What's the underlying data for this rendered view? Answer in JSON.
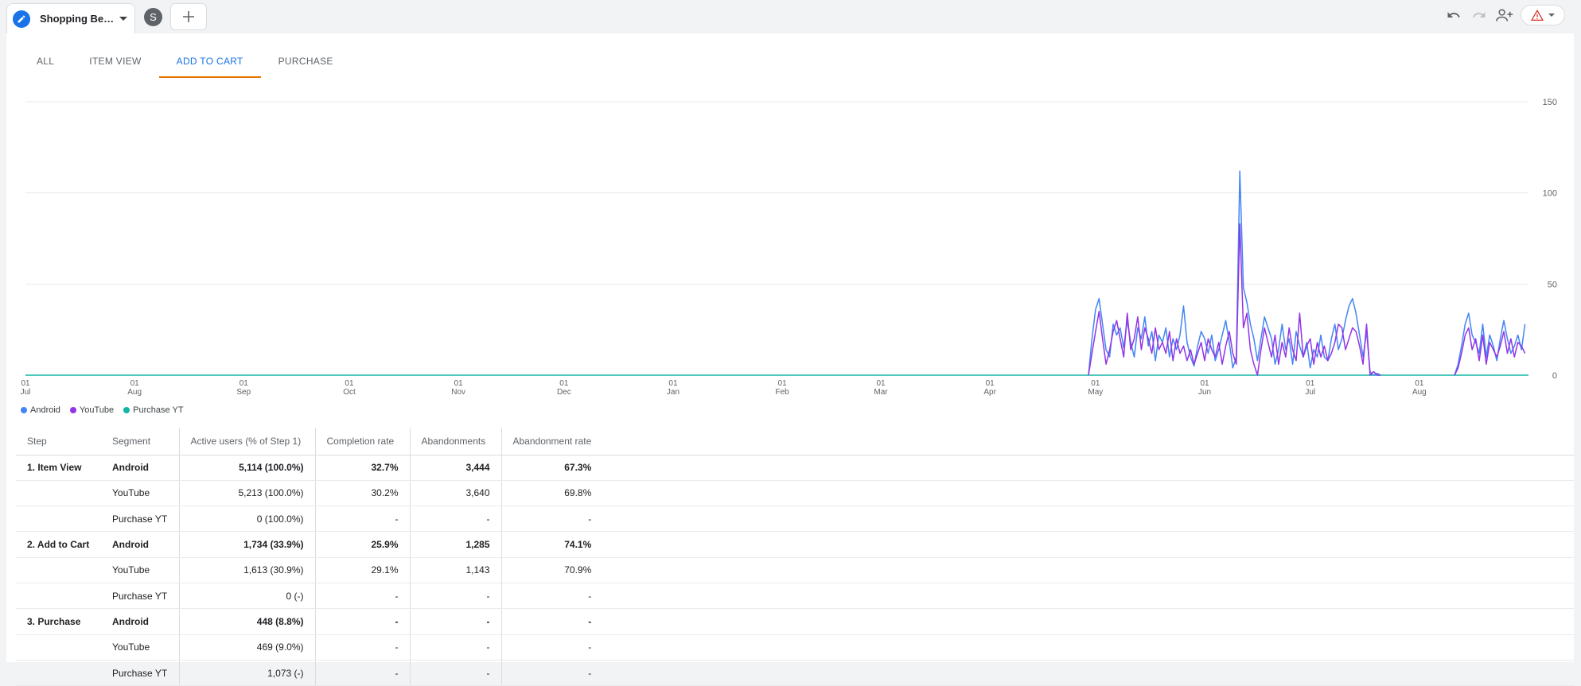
{
  "topbar": {
    "exploration_title": "Shopping Beh...",
    "segment_initial": "S",
    "icons": [
      "undo-icon",
      "redo-icon",
      "share-icon",
      "warning-icon"
    ]
  },
  "tabs": [
    {
      "label": "ALL",
      "active": false
    },
    {
      "label": "ITEM VIEW",
      "active": false
    },
    {
      "label": "ADD TO CART",
      "active": true
    },
    {
      "label": "PURCHASE",
      "active": false
    }
  ],
  "colors": {
    "android": "#4285f4",
    "youtube": "#9334e6",
    "purchase_yt": "#12b5a6",
    "accent": "#1a73e8",
    "tab_underline": "#e37400"
  },
  "chart_data": {
    "type": "line",
    "y_ticks": [
      0,
      50,
      100,
      150
    ],
    "ylim": [
      0,
      150
    ],
    "y_axis_side": "right",
    "x_ticks": [
      {
        "day": "01",
        "month": "Jul"
      },
      {
        "day": "01",
        "month": "Aug"
      },
      {
        "day": "01",
        "month": "Sep"
      },
      {
        "day": "01",
        "month": "Oct"
      },
      {
        "day": "01",
        "month": "Nov"
      },
      {
        "day": "01",
        "month": "Dec"
      },
      {
        "day": "01",
        "month": "Jan"
      },
      {
        "day": "01",
        "month": "Feb"
      },
      {
        "day": "01",
        "month": "Mar"
      },
      {
        "day": "01",
        "month": "Apr"
      },
      {
        "day": "01",
        "month": "May"
      },
      {
        "day": "01",
        "month": "Jun"
      },
      {
        "day": "01",
        "month": "Jul"
      },
      {
        "day": "01",
        "month": "Aug"
      }
    ],
    "x_range": [
      "Jul 01",
      "Sep 01 (following year)"
    ],
    "grid": true,
    "legend_position": "bottom-left",
    "series": [
      {
        "name": "Android",
        "color": "#4285f4",
        "points": [
          [
            "Apr 29",
            0
          ],
          [
            "Apr 30",
            20
          ],
          [
            "May 01",
            36
          ],
          [
            "May 02",
            42
          ],
          [
            "May 03",
            28
          ],
          [
            "May 04",
            14
          ],
          [
            "May 05",
            10
          ],
          [
            "May 06",
            28
          ],
          [
            "May 07",
            22
          ],
          [
            "May 08",
            26
          ],
          [
            "May 09",
            15
          ],
          [
            "May 10",
            30
          ],
          [
            "May 11",
            18
          ],
          [
            "May 12",
            10
          ],
          [
            "May 13",
            26
          ],
          [
            "May 14",
            20
          ],
          [
            "May 15",
            32
          ],
          [
            "May 16",
            16
          ],
          [
            "May 17",
            24
          ],
          [
            "May 18",
            8
          ],
          [
            "May 19",
            22
          ],
          [
            "May 20",
            18
          ],
          [
            "May 21",
            26
          ],
          [
            "May 22",
            10
          ],
          [
            "May 23",
            20
          ],
          [
            "May 24",
            14
          ],
          [
            "May 25",
            22
          ],
          [
            "May 26",
            38
          ],
          [
            "May 27",
            18
          ],
          [
            "May 28",
            10
          ],
          [
            "May 29",
            5
          ],
          [
            "May 30",
            16
          ],
          [
            "May 31",
            24
          ],
          [
            "Jun 01",
            20
          ],
          [
            "Jun 02",
            12
          ],
          [
            "Jun 03",
            22
          ],
          [
            "Jun 04",
            8
          ],
          [
            "Jun 05",
            14
          ],
          [
            "Jun 06",
            22
          ],
          [
            "Jun 07",
            30
          ],
          [
            "Jun 08",
            18
          ],
          [
            "Jun 09",
            4
          ],
          [
            "Jun 10",
            10
          ],
          [
            "Jun 11",
            112
          ],
          [
            "Jun 12",
            48
          ],
          [
            "Jun 13",
            40
          ],
          [
            "Jun 14",
            28
          ],
          [
            "Jun 15",
            20
          ],
          [
            "Jun 16",
            8
          ],
          [
            "Jun 17",
            20
          ],
          [
            "Jun 18",
            32
          ],
          [
            "Jun 19",
            26
          ],
          [
            "Jun 20",
            20
          ],
          [
            "Jun 21",
            6
          ],
          [
            "Jun 22",
            14
          ],
          [
            "Jun 23",
            28
          ],
          [
            "Jun 24",
            14
          ],
          [
            "Jun 25",
            20
          ],
          [
            "Jun 26",
            6
          ],
          [
            "Jun 27",
            24
          ],
          [
            "Jun 28",
            16
          ],
          [
            "Jun 29",
            10
          ],
          [
            "Jun 30",
            18
          ],
          [
            "Jul 01",
            4
          ],
          [
            "Jul 02",
            14
          ],
          [
            "Jul 03",
            10
          ],
          [
            "Jul 04",
            22
          ],
          [
            "Jul 05",
            10
          ],
          [
            "Jul 06",
            8
          ],
          [
            "Jul 07",
            20
          ],
          [
            "Jul 08",
            28
          ],
          [
            "Jul 09",
            14
          ],
          [
            "Jul 10",
            20
          ],
          [
            "Jul 11",
            30
          ],
          [
            "Jul 12",
            38
          ],
          [
            "Jul 13",
            42
          ],
          [
            "Jul 14",
            34
          ],
          [
            "Jul 15",
            22
          ],
          [
            "Jul 16",
            10
          ],
          [
            "Jul 17",
            24
          ],
          [
            "Jul 18",
            2
          ],
          [
            "Jul 19",
            0
          ],
          [
            "Jul 20",
            1
          ],
          [
            "Jul 21",
            0
          ],
          [
            "Aug 11",
            0
          ],
          [
            "Aug 12",
            6
          ],
          [
            "Aug 13",
            16
          ],
          [
            "Aug 14",
            28
          ],
          [
            "Aug 15",
            34
          ],
          [
            "Aug 16",
            22
          ],
          [
            "Aug 17",
            18
          ],
          [
            "Aug 18",
            12
          ],
          [
            "Aug 19",
            28
          ],
          [
            "Aug 20",
            10
          ],
          [
            "Aug 21",
            22
          ],
          [
            "Aug 22",
            16
          ],
          [
            "Aug 23",
            8
          ],
          [
            "Aug 24",
            20
          ],
          [
            "Aug 25",
            30
          ],
          [
            "Aug 26",
            20
          ],
          [
            "Aug 27",
            12
          ],
          [
            "Aug 28",
            16
          ],
          [
            "Aug 29",
            22
          ],
          [
            "Aug 30",
            14
          ],
          [
            "Aug 31",
            28
          ]
        ]
      },
      {
        "name": "YouTube",
        "color": "#9334e6",
        "points": [
          [
            "Apr 29",
            0
          ],
          [
            "Apr 30",
            12
          ],
          [
            "May 01",
            24
          ],
          [
            "May 02",
            35
          ],
          [
            "May 03",
            20
          ],
          [
            "May 04",
            6
          ],
          [
            "May 05",
            14
          ],
          [
            "May 06",
            24
          ],
          [
            "May 07",
            30
          ],
          [
            "May 08",
            20
          ],
          [
            "May 09",
            10
          ],
          [
            "May 10",
            34
          ],
          [
            "May 11",
            14
          ],
          [
            "May 12",
            20
          ],
          [
            "May 13",
            32
          ],
          [
            "May 14",
            14
          ],
          [
            "May 15",
            26
          ],
          [
            "May 16",
            20
          ],
          [
            "May 17",
            12
          ],
          [
            "May 18",
            26
          ],
          [
            "May 19",
            14
          ],
          [
            "May 20",
            18
          ],
          [
            "May 21",
            12
          ],
          [
            "May 22",
            24
          ],
          [
            "May 23",
            8
          ],
          [
            "May 24",
            20
          ],
          [
            "May 25",
            12
          ],
          [
            "May 26",
            16
          ],
          [
            "May 27",
            8
          ],
          [
            "May 28",
            14
          ],
          [
            "May 29",
            6
          ],
          [
            "May 30",
            12
          ],
          [
            "May 31",
            18
          ],
          [
            "Jun 01",
            8
          ],
          [
            "Jun 02",
            20
          ],
          [
            "Jun 03",
            14
          ],
          [
            "Jun 04",
            10
          ],
          [
            "Jun 05",
            18
          ],
          [
            "Jun 06",
            6
          ],
          [
            "Jun 07",
            16
          ],
          [
            "Jun 08",
            24
          ],
          [
            "Jun 09",
            12
          ],
          [
            "Jun 10",
            6
          ],
          [
            "Jun 11",
            83
          ],
          [
            "Jun 12",
            26
          ],
          [
            "Jun 13",
            34
          ],
          [
            "Jun 14",
            14
          ],
          [
            "Jun 15",
            6
          ],
          [
            "Jun 16",
            0
          ],
          [
            "Jun 17",
            14
          ],
          [
            "Jun 18",
            26
          ],
          [
            "Jun 19",
            18
          ],
          [
            "Jun 20",
            10
          ],
          [
            "Jun 21",
            22
          ],
          [
            "Jun 22",
            6
          ],
          [
            "Jun 23",
            18
          ],
          [
            "Jun 24",
            10
          ],
          [
            "Jun 25",
            26
          ],
          [
            "Jun 26",
            14
          ],
          [
            "Jun 27",
            8
          ],
          [
            "Jun 28",
            34
          ],
          [
            "Jun 29",
            10
          ],
          [
            "Jun 30",
            16
          ],
          [
            "Jul 01",
            20
          ],
          [
            "Jul 02",
            6
          ],
          [
            "Jul 03",
            18
          ],
          [
            "Jul 04",
            10
          ],
          [
            "Jul 05",
            16
          ],
          [
            "Jul 06",
            8
          ],
          [
            "Jul 07",
            12
          ],
          [
            "Jul 08",
            18
          ],
          [
            "Jul 09",
            28
          ],
          [
            "Jul 10",
            26
          ],
          [
            "Jul 11",
            14
          ],
          [
            "Jul 12",
            20
          ],
          [
            "Jul 13",
            26
          ],
          [
            "Jul 14",
            24
          ],
          [
            "Jul 15",
            16
          ],
          [
            "Jul 16",
            6
          ],
          [
            "Jul 17",
            28
          ],
          [
            "Jul 18",
            0
          ],
          [
            "Jul 19",
            2
          ],
          [
            "Jul 20",
            0
          ],
          [
            "Jul 21",
            0
          ],
          [
            "Aug 11",
            0
          ],
          [
            "Aug 12",
            4
          ],
          [
            "Aug 13",
            12
          ],
          [
            "Aug 14",
            22
          ],
          [
            "Aug 15",
            26
          ],
          [
            "Aug 16",
            14
          ],
          [
            "Aug 17",
            20
          ],
          [
            "Aug 18",
            8
          ],
          [
            "Aug 19",
            22
          ],
          [
            "Aug 20",
            6
          ],
          [
            "Aug 21",
            18
          ],
          [
            "Aug 22",
            14
          ],
          [
            "Aug 23",
            10
          ],
          [
            "Aug 24",
            16
          ],
          [
            "Aug 25",
            24
          ],
          [
            "Aug 26",
            12
          ],
          [
            "Aug 27",
            20
          ],
          [
            "Aug 28",
            10
          ],
          [
            "Aug 29",
            18
          ],
          [
            "Aug 30",
            16
          ],
          [
            "Aug 31",
            12
          ]
        ]
      },
      {
        "name": "Purchase YT",
        "color": "#12b5a6",
        "points": [
          [
            "Jul 01",
            0
          ],
          [
            "Aug 31",
            0
          ]
        ]
      }
    ]
  },
  "table": {
    "headers": [
      "Step",
      "Segment",
      "Active users (% of Step 1)",
      "Completion rate",
      "Abandonments",
      "Abandonment rate"
    ],
    "rows": [
      {
        "step": "1. Item View",
        "segment": "Android",
        "active": "5,114 (100.0%)",
        "completion": "32.7%",
        "abandon": "3,444",
        "abandon_rate": "67.3%",
        "bold": true
      },
      {
        "step": "",
        "segment": "YouTube",
        "active": "5,213 (100.0%)",
        "completion": "30.2%",
        "abandon": "3,640",
        "abandon_rate": "69.8%",
        "bold": false
      },
      {
        "step": "",
        "segment": "Purchase YT",
        "active": "0 (100.0%)",
        "completion": "-",
        "abandon": "-",
        "abandon_rate": "-",
        "bold": false
      },
      {
        "step": "2. Add to Cart",
        "segment": "Android",
        "active": "1,734 (33.9%)",
        "completion": "25.9%",
        "abandon": "1,285",
        "abandon_rate": "74.1%",
        "bold": true
      },
      {
        "step": "",
        "segment": "YouTube",
        "active": "1,613 (30.9%)",
        "completion": "29.1%",
        "abandon": "1,143",
        "abandon_rate": "70.9%",
        "bold": false
      },
      {
        "step": "",
        "segment": "Purchase YT",
        "active": "0 (-)",
        "completion": "-",
        "abandon": "-",
        "abandon_rate": "-",
        "bold": false
      },
      {
        "step": "3. Purchase",
        "segment": "Android",
        "active": "448 (8.8%)",
        "completion": "-",
        "abandon": "-",
        "abandon_rate": "-",
        "bold": true
      },
      {
        "step": "",
        "segment": "YouTube",
        "active": "469 (9.0%)",
        "completion": "-",
        "abandon": "-",
        "abandon_rate": "-",
        "bold": false
      },
      {
        "step": "",
        "segment": "Purchase YT",
        "active": "1,073 (-)",
        "completion": "-",
        "abandon": "-",
        "abandon_rate": "-",
        "bold": false
      }
    ]
  }
}
